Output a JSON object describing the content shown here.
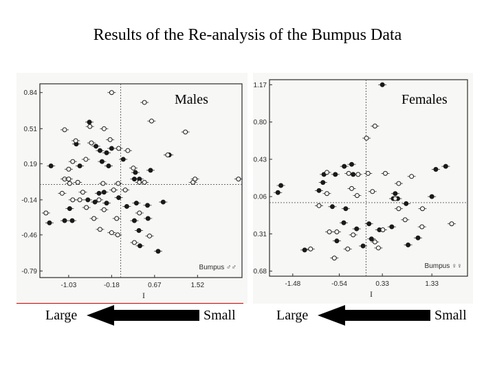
{
  "title": "Results of the Re-analysis of the Bumpus Data",
  "labels": {
    "large": "Large",
    "small": "Small"
  },
  "chart_data": [
    {
      "type": "scatter",
      "title": "Males",
      "xlabel": "I",
      "inset_text": "Bumpus ♂♂",
      "xlim": [
        -1.6,
        2.4
      ],
      "ylim": [
        -0.85,
        0.92
      ],
      "x_ticks": [
        "-1.03",
        "-0.18",
        "0.67",
        "1.52"
      ],
      "y_ticks": [
        "0.84",
        "0.51",
        "0.19",
        "-0.14",
        "-0.46",
        "-0.79"
      ],
      "reference_lines": {
        "x": 0.0,
        "y": 0.0
      },
      "series": [
        {
          "marker": "filled",
          "points": [
            [
              -0.62,
              0.57
            ],
            [
              -0.88,
              0.37
            ],
            [
              -0.49,
              0.35
            ],
            [
              -0.41,
              0.31
            ],
            [
              -0.28,
              0.29
            ],
            [
              -0.18,
              0.33
            ],
            [
              0.05,
              0.23
            ],
            [
              -1.38,
              0.17
            ],
            [
              -0.81,
              0.17
            ],
            [
              -0.37,
              0.21
            ],
            [
              -0.24,
              0.17
            ],
            [
              0.29,
              0.11
            ],
            [
              0.59,
              0.13
            ],
            [
              0.37,
              0.05
            ],
            [
              -0.43,
              -0.08
            ],
            [
              -0.33,
              -0.07
            ],
            [
              -0.04,
              -0.12
            ],
            [
              -0.28,
              -0.17
            ],
            [
              -0.51,
              -0.16
            ],
            [
              -0.65,
              -0.14
            ],
            [
              0.12,
              -0.2
            ],
            [
              0.31,
              -0.17
            ],
            [
              0.53,
              -0.19
            ],
            [
              0.84,
              -0.16
            ],
            [
              -1.11,
              -0.33
            ],
            [
              -0.96,
              -0.33
            ],
            [
              0.27,
              -0.33
            ],
            [
              0.54,
              -0.31
            ],
            [
              -1.41,
              -0.35
            ],
            [
              0.36,
              -0.42
            ],
            [
              0.38,
              -0.56
            ],
            [
              0.74,
              -0.61
            ],
            [
              -1.01,
              -0.22
            ],
            [
              0.96,
              0.27
            ],
            [
              0.27,
              0.05
            ]
          ]
        },
        {
          "marker": "open",
          "points": [
            [
              -0.18,
              0.84
            ],
            [
              0.47,
              0.75
            ],
            [
              0.61,
              0.58
            ],
            [
              -0.61,
              0.53
            ],
            [
              -1.11,
              0.5
            ],
            [
              -0.33,
              0.51
            ],
            [
              1.28,
              0.48
            ],
            [
              -0.89,
              0.4
            ],
            [
              -0.58,
              0.38
            ],
            [
              -0.04,
              0.33
            ],
            [
              0.14,
              0.31
            ],
            [
              -0.69,
              0.23
            ],
            [
              -0.95,
              0.21
            ],
            [
              -1.03,
              0.14
            ],
            [
              0.25,
              0.15
            ],
            [
              -1.11,
              0.05
            ],
            [
              -1.01,
              0.01
            ],
            [
              0.37,
              0.02
            ],
            [
              -0.85,
              0.02
            ],
            [
              -0.35,
              0.01
            ],
            [
              1.43,
              0.02
            ],
            [
              0.47,
              0.02
            ],
            [
              -0.05,
              0.01
            ],
            [
              -0.75,
              -0.07
            ],
            [
              -0.14,
              -0.05
            ],
            [
              -1.16,
              -0.08
            ],
            [
              -0.95,
              -0.14
            ],
            [
              -0.81,
              -0.14
            ],
            [
              -0.43,
              -0.14
            ],
            [
              -0.68,
              -0.21
            ],
            [
              -0.33,
              -0.23
            ],
            [
              0.37,
              -0.26
            ],
            [
              -0.08,
              -0.31
            ],
            [
              -0.53,
              -0.31
            ],
            [
              -0.41,
              -0.41
            ],
            [
              -0.18,
              -0.44
            ],
            [
              -0.06,
              -0.46
            ],
            [
              0.27,
              -0.53
            ],
            [
              0.57,
              -0.47
            ],
            [
              -1.48,
              -0.26
            ],
            [
              -1.03,
              0.05
            ],
            [
              0.09,
              -0.05
            ],
            [
              0.93,
              0.27
            ],
            [
              1.47,
              0.05
            ],
            [
              2.33,
              0.05
            ],
            [
              -0.21,
              0.41
            ]
          ]
        }
      ]
    },
    {
      "type": "scatter",
      "title": "Females",
      "xlabel": "I",
      "inset_text": "Bumpus ♀♀",
      "xlim": [
        -1.95,
        2.05
      ],
      "ylim": [
        -0.73,
        1.22
      ],
      "x_ticks": [
        "-1.48",
        "-0.54",
        "0.33",
        "1.33"
      ],
      "y_ticks": [
        "1.17",
        "0.80",
        "0.43",
        "0.06",
        "-0.31",
        "-0.68"
      ],
      "reference_lines": {
        "x": 0.0,
        "y": 0.0
      },
      "series": [
        {
          "marker": "filled",
          "points": [
            [
              0.33,
              1.17
            ],
            [
              -1.78,
              0.1
            ],
            [
              -1.72,
              0.17
            ],
            [
              -0.87,
              0.2
            ],
            [
              -0.85,
              0.28
            ],
            [
              -0.62,
              0.28
            ],
            [
              -0.44,
              0.36
            ],
            [
              -0.29,
              0.38
            ],
            [
              -0.26,
              0.28
            ],
            [
              0.55,
              0.04
            ],
            [
              0.64,
              0.04
            ],
            [
              0.81,
              -0.01
            ],
            [
              1.33,
              0.06
            ],
            [
              1.41,
              0.33
            ],
            [
              1.61,
              0.36
            ],
            [
              -0.68,
              -0.04
            ],
            [
              -0.41,
              -0.06
            ],
            [
              -0.45,
              -0.2
            ],
            [
              -0.19,
              -0.26
            ],
            [
              -0.59,
              -0.38
            ],
            [
              0.06,
              -0.21
            ],
            [
              0.11,
              -0.36
            ],
            [
              0.27,
              -0.27
            ],
            [
              0.52,
              -0.24
            ],
            [
              0.85,
              -0.42
            ],
            [
              1.05,
              -0.35
            ],
            [
              -1.24,
              -0.47
            ],
            [
              -0.06,
              -0.43
            ],
            [
              0.59,
              0.09
            ],
            [
              -0.95,
              0.12
            ]
          ]
        },
        {
          "marker": "open",
          "points": [
            [
              0.01,
              0.64
            ],
            [
              0.18,
              0.76
            ],
            [
              -0.79,
              0.3
            ],
            [
              -0.35,
              0.29
            ],
            [
              -0.16,
              0.28
            ],
            [
              0.39,
              0.29
            ],
            [
              0.66,
              0.19
            ],
            [
              0.92,
              0.26
            ],
            [
              -0.79,
              0.09
            ],
            [
              -0.29,
              0.14
            ],
            [
              0.13,
              0.11
            ],
            [
              -0.18,
              0.07
            ],
            [
              0.04,
              0.29
            ],
            [
              0.59,
              0.04
            ],
            [
              0.66,
              -0.06
            ],
            [
              1.14,
              -0.06
            ],
            [
              0.79,
              -0.17
            ],
            [
              1.13,
              -0.24
            ],
            [
              1.73,
              -0.21
            ],
            [
              0.34,
              -0.27
            ],
            [
              -0.74,
              -0.29
            ],
            [
              -0.59,
              -0.29
            ],
            [
              -0.26,
              -0.32
            ],
            [
              -0.37,
              -0.46
            ],
            [
              0.25,
              -0.45
            ],
            [
              -1.12,
              -0.46
            ],
            [
              -0.64,
              -0.55
            ],
            [
              -0.95,
              -0.03
            ],
            [
              0.18,
              -0.39
            ]
          ]
        }
      ]
    }
  ]
}
